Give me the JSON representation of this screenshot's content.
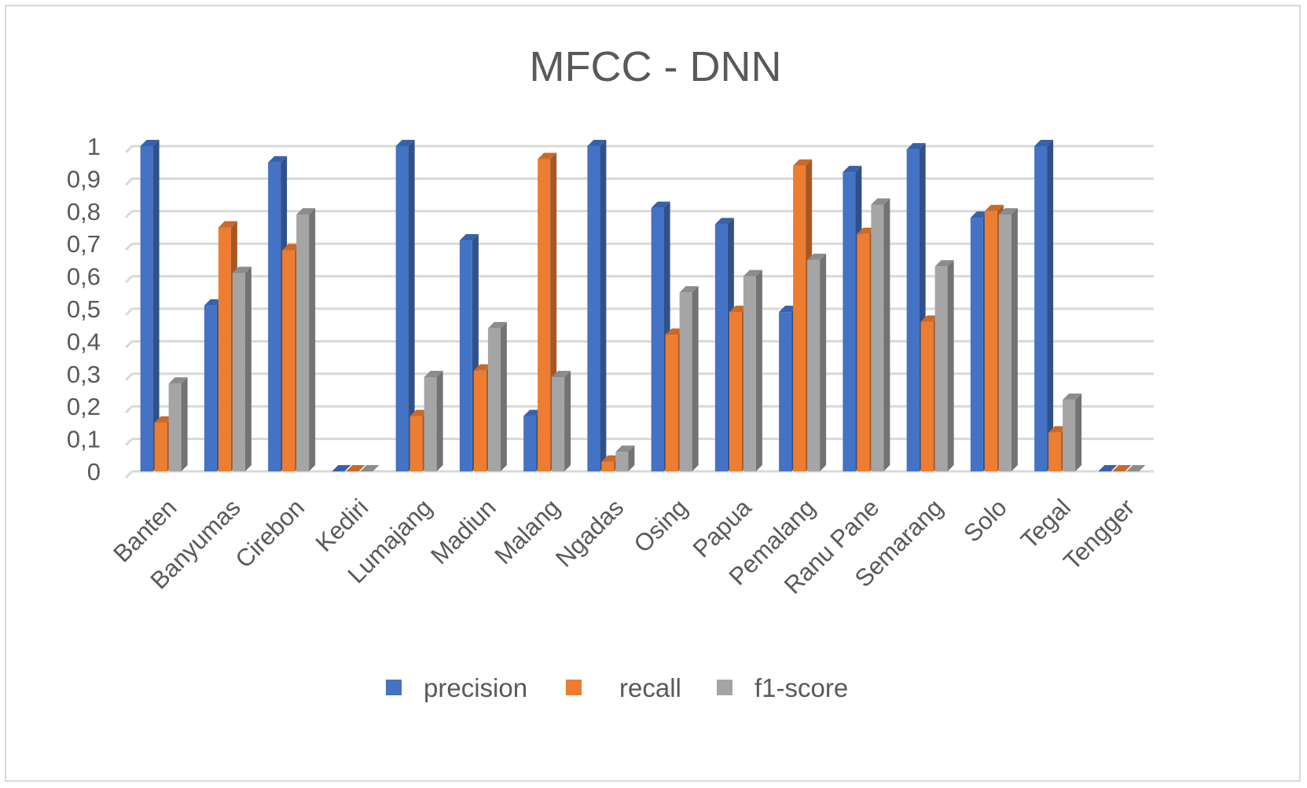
{
  "chart_data": {
    "type": "bar",
    "title": "MFCC - DNN",
    "xlabel": "",
    "ylabel": "",
    "ylim": [
      0,
      1
    ],
    "y_ticks": [
      "0",
      "0,1",
      "0,2",
      "0,3",
      "0,4",
      "0,5",
      "0,6",
      "0,7",
      "0,8",
      "0,9",
      "1"
    ],
    "grid": true,
    "legend_position": "bottom",
    "style": "3d-clustered-column",
    "categories": [
      "Banten",
      "Banyumas",
      "Cirebon",
      "Kediri",
      "Lumajang",
      "Madiun",
      "Malang",
      "Ngadas",
      "Osing",
      "Papua",
      "Pemalang",
      "Ranu Pane",
      "Semarang",
      "Solo",
      "Tegal",
      "Tengger"
    ],
    "series": [
      {
        "name": "precision",
        "color": "#4472c4",
        "values": [
          1.0,
          0.51,
          0.95,
          0.0,
          1.0,
          0.71,
          0.17,
          1.0,
          0.81,
          0.76,
          0.49,
          0.92,
          0.99,
          0.78,
          1.0,
          0.0
        ]
      },
      {
        "name": "recall",
        "color": "#ed7d31",
        "values": [
          0.15,
          0.75,
          0.68,
          0.0,
          0.17,
          0.31,
          0.96,
          0.03,
          0.42,
          0.49,
          0.94,
          0.73,
          0.46,
          0.8,
          0.12,
          0.0
        ]
      },
      {
        "name": "f1-score",
        "color": "#a5a5a5",
        "values": [
          0.27,
          0.61,
          0.79,
          0.0,
          0.29,
          0.44,
          0.29,
          0.06,
          0.55,
          0.6,
          0.65,
          0.82,
          0.63,
          0.79,
          0.22,
          0.0
        ]
      }
    ]
  }
}
